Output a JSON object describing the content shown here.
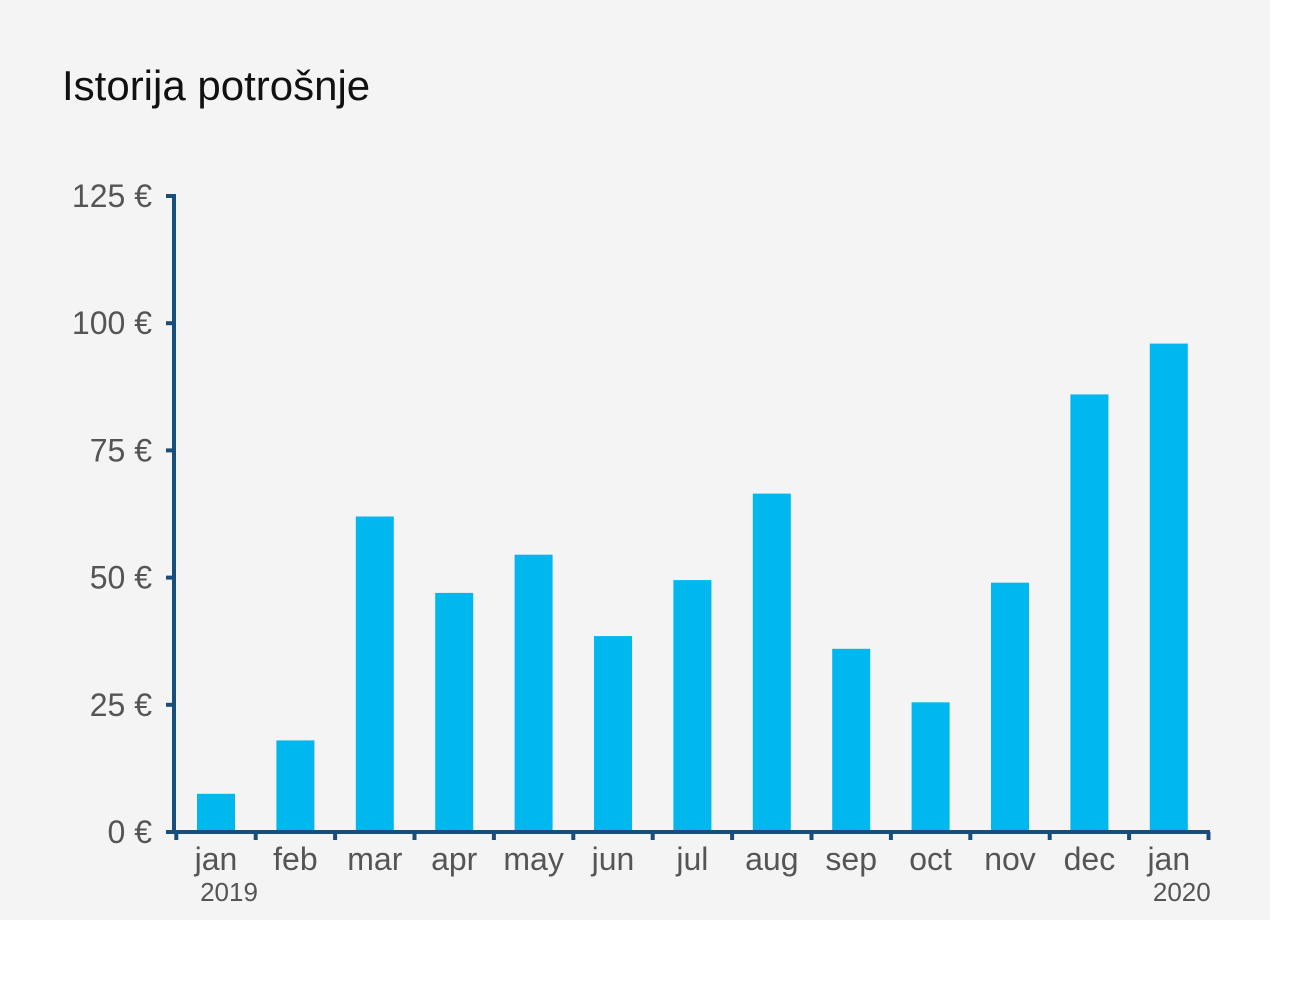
{
  "chart_data": {
    "type": "bar",
    "title": "Istorija potrošnje",
    "categories": [
      "jan",
      "feb",
      "mar",
      "apr",
      "may",
      "jun",
      "jul",
      "aug",
      "sep",
      "oct",
      "nov",
      "dec",
      "jan"
    ],
    "year_labels": [
      "2019",
      "",
      "",
      "",
      "",
      "",
      "",
      "",
      "",
      "",
      "",
      "",
      "2020"
    ],
    "values": [
      7.5,
      18,
      62,
      47,
      54.5,
      38.5,
      49.5,
      66.5,
      36,
      25.5,
      49,
      86,
      96
    ],
    "y_ticks": [
      "0 €",
      "25 €",
      "50 €",
      "75 €",
      "100 €",
      "125 €"
    ],
    "ylim": [
      0,
      125
    ],
    "xlabel": "",
    "ylabel": "",
    "grid": false,
    "bar_color": "#00b8ee",
    "axis_color": "#1a4e7a"
  }
}
